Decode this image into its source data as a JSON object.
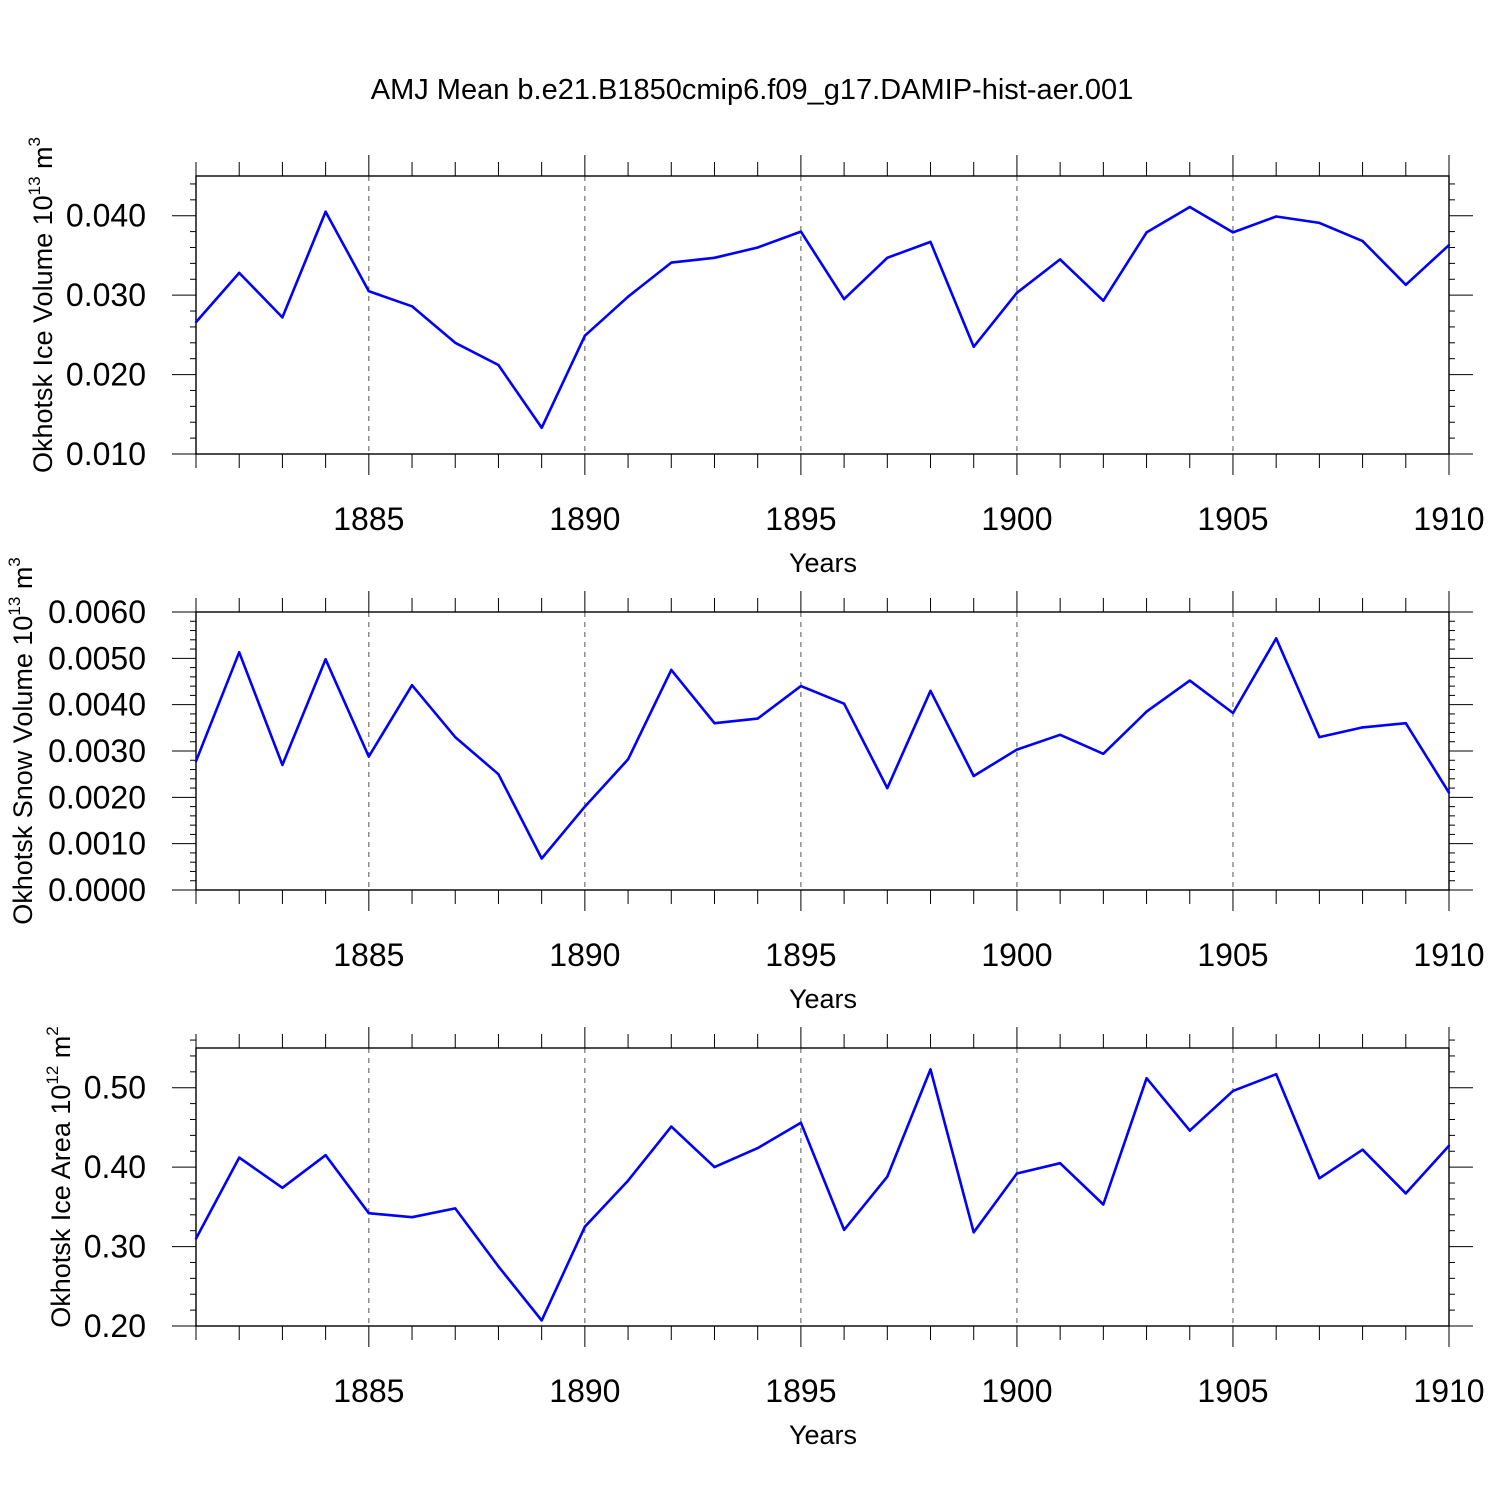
{
  "chart_data": {
    "type": "line",
    "title": "AMJ Mean b.e21.B1850cmip6.f09_g17.DAMIP-hist-aer.001",
    "series_color": "#0000ff",
    "panels": [
      {
        "id": "ice-volume",
        "ylabel_text": "Okhotsk Ice Volume 10",
        "ylabel_exp": "13",
        "ylabel_unit": " m",
        "ylabel_unit_exp": "3",
        "xlabel": "Years",
        "xlim": [
          1881,
          1910
        ],
        "ylim": [
          0.01,
          0.045
        ],
        "x_major_ticks": [
          1885,
          1890,
          1895,
          1900,
          1905,
          1910
        ],
        "x_tick_labels": [
          "1885",
          "1890",
          "1895",
          "1900",
          "1905",
          "1910"
        ],
        "y_major_ticks": [
          0.01,
          0.02,
          0.03,
          0.04
        ],
        "y_tick_labels": [
          "0.010",
          "0.020",
          "0.030",
          "0.040"
        ],
        "y_minor_step": 0.002,
        "x": [
          1881,
          1882,
          1883,
          1884,
          1885,
          1886,
          1887,
          1888,
          1889,
          1890,
          1891,
          1892,
          1893,
          1894,
          1895,
          1896,
          1897,
          1898,
          1899,
          1900,
          1901,
          1902,
          1903,
          1904,
          1905,
          1906,
          1907,
          1908,
          1909,
          1910
        ],
        "values": [
          0.0266,
          0.0328,
          0.0272,
          0.0405,
          0.0305,
          0.0286,
          0.024,
          0.0212,
          0.0133,
          0.0249,
          0.0298,
          0.0341,
          0.0347,
          0.036,
          0.038,
          0.0295,
          0.0347,
          0.0367,
          0.0235,
          0.0303,
          0.0345,
          0.0293,
          0.0379,
          0.0411,
          0.0379,
          0.0399,
          0.0391,
          0.0368,
          0.0313,
          0.0363
        ]
      },
      {
        "id": "snow-volume",
        "ylabel_text": "Okhotsk Snow Volume 10",
        "ylabel_exp": "13",
        "ylabel_unit": " m",
        "ylabel_unit_exp": "3",
        "xlabel": "Years",
        "xlim": [
          1881,
          1910
        ],
        "ylim": [
          0.0,
          0.006
        ],
        "x_major_ticks": [
          1885,
          1890,
          1895,
          1900,
          1905,
          1910
        ],
        "x_tick_labels": [
          "1885",
          "1890",
          "1895",
          "1900",
          "1905",
          "1910"
        ],
        "y_major_ticks": [
          0.0,
          0.001,
          0.002,
          0.003,
          0.004,
          0.005,
          0.006
        ],
        "y_tick_labels": [
          "0.0000",
          "0.0010",
          "0.0020",
          "0.0030",
          "0.0040",
          "0.0050",
          "0.0060"
        ],
        "y_minor_step": 0.0002,
        "x": [
          1881,
          1882,
          1883,
          1884,
          1885,
          1886,
          1887,
          1888,
          1889,
          1890,
          1891,
          1892,
          1893,
          1894,
          1895,
          1896,
          1897,
          1898,
          1899,
          1900,
          1901,
          1902,
          1903,
          1904,
          1905,
          1906,
          1907,
          1908,
          1909,
          1910
        ],
        "values": [
          0.00278,
          0.00513,
          0.0027,
          0.00498,
          0.00288,
          0.00442,
          0.0033,
          0.0025,
          0.00068,
          0.0018,
          0.00282,
          0.00475,
          0.0036,
          0.0037,
          0.0044,
          0.00402,
          0.0022,
          0.0043,
          0.00246,
          0.00303,
          0.00335,
          0.00294,
          0.00385,
          0.00452,
          0.00382,
          0.00543,
          0.0033,
          0.00351,
          0.0036,
          0.0021
        ]
      },
      {
        "id": "ice-area",
        "ylabel_text": "Okhotsk Ice Area 10",
        "ylabel_exp": "12",
        "ylabel_unit": " m",
        "ylabel_unit_exp": "2",
        "xlabel": "Years",
        "xlim": [
          1881,
          1910
        ],
        "ylim": [
          0.2,
          0.55
        ],
        "x_major_ticks": [
          1885,
          1890,
          1895,
          1900,
          1905,
          1910
        ],
        "x_tick_labels": [
          "1885",
          "1890",
          "1895",
          "1900",
          "1905",
          "1910"
        ],
        "y_major_ticks": [
          0.2,
          0.3,
          0.4,
          0.5
        ],
        "y_tick_labels": [
          "0.20",
          "0.30",
          "0.40",
          "0.50"
        ],
        "y_minor_step": 0.02,
        "x": [
          1881,
          1882,
          1883,
          1884,
          1885,
          1886,
          1887,
          1888,
          1889,
          1890,
          1891,
          1892,
          1893,
          1894,
          1895,
          1896,
          1897,
          1898,
          1899,
          1900,
          1901,
          1902,
          1903,
          1904,
          1905,
          1906,
          1907,
          1908,
          1909,
          1910
        ],
        "values": [
          0.31,
          0.412,
          0.374,
          0.415,
          0.342,
          0.337,
          0.348,
          0.275,
          0.207,
          0.325,
          0.383,
          0.451,
          0.4,
          0.424,
          0.456,
          0.321,
          0.388,
          0.523,
          0.318,
          0.392,
          0.405,
          0.353,
          0.512,
          0.446,
          0.496,
          0.517,
          0.386,
          0.422,
          0.367,
          0.427
        ]
      }
    ]
  }
}
